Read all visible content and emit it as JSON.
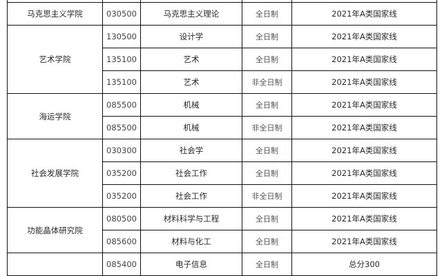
{
  "groups": [
    {
      "college": "马克思主义学院",
      "rows": [
        {
          "code": "030500",
          "major": "马克思主义理论",
          "type": "全日制",
          "line": "2021年A类国家线"
        }
      ]
    },
    {
      "college": "艺术学院",
      "rows": [
        {
          "code": "130500",
          "major": "设计学",
          "type": "全日制",
          "line": "2021年A类国家线"
        },
        {
          "code": "135100",
          "major": "艺术",
          "type": "全日制",
          "line": "2021年A类国家线"
        },
        {
          "code": "135100",
          "major": "艺术",
          "type": "非全日制",
          "line": "2021年A类国家线"
        }
      ]
    },
    {
      "college": "海运学院",
      "rows": [
        {
          "code": "085500",
          "major": "机械",
          "type": "全日制",
          "line": "2021年A类国家线"
        },
        {
          "code": "085500",
          "major": "机械",
          "type": "非全日制",
          "line": "2021年A类国家线"
        }
      ]
    },
    {
      "college": "社会发展学院",
      "rows": [
        {
          "code": "030300",
          "major": "社会学",
          "type": "全日制",
          "line": "2021年A类国家线"
        },
        {
          "code": "035200",
          "major": "社会工作",
          "type": "全日制",
          "line": "2021年A类国家线"
        },
        {
          "code": "035200",
          "major": "社会工作",
          "type": "非全日制",
          "line": "2021年A类国家线"
        }
      ]
    },
    {
      "college": "功能晶体研究院",
      "rows": [
        {
          "code": "080500",
          "major": "材料科学与工程",
          "type": "全日制",
          "line": "2021年A类国家线"
        },
        {
          "code": "085600",
          "major": "材料与化工",
          "type": "全日制",
          "line": "2021年A类国家线"
        }
      ]
    },
    {
      "college": "",
      "rows": [
        {
          "code": "085400",
          "major": "电子信息",
          "type": "全日制",
          "line": "总分300"
        }
      ]
    }
  ]
}
